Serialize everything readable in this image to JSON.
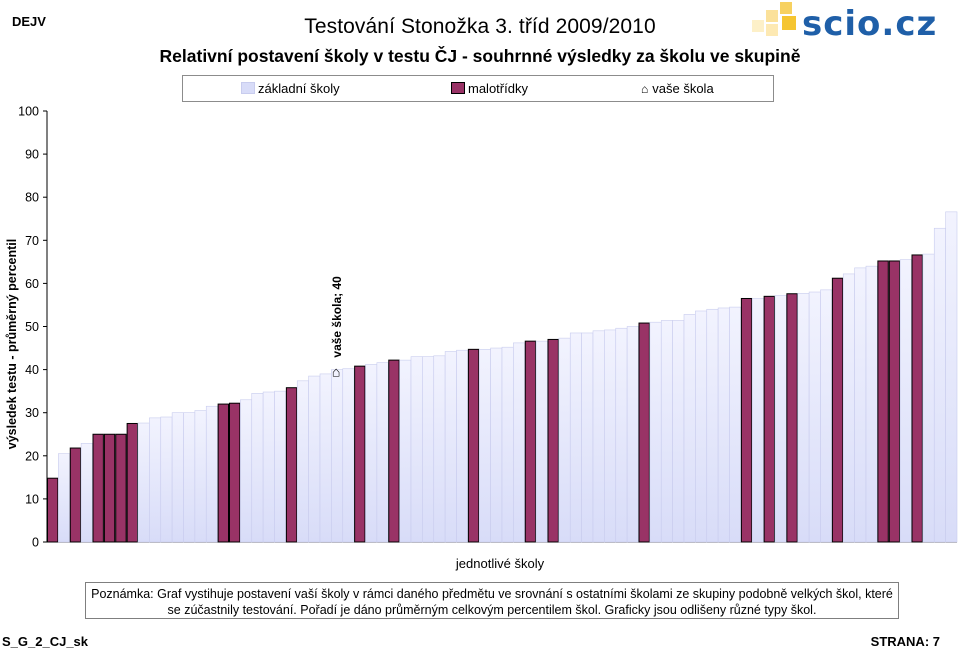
{
  "header": {
    "code": "DEJV",
    "title": "Testování Stonožka 3. tříd 2009/2010",
    "subtitle": "Relativní postavení školy v testu ČJ - souhrnné výsledky za školu ve skupině",
    "logo_text": "scio.cz"
  },
  "legend": {
    "basic": "základní školy",
    "small": "malotřídky",
    "yours": "vaše škola"
  },
  "colors": {
    "basic_bar": "#d8dcf8",
    "small_bar": "#993366",
    "logo_blue": "#1f5fa8",
    "logo_yellow": "#f5c531"
  },
  "chart_data": {
    "type": "bar",
    "title": "Relativní postavení školy v testu ČJ - souhrnné výsledky za školu ve skupině",
    "xlabel": "jednotlivé školy",
    "ylabel": "výsledek testu - průměrný percentil",
    "ylim": [
      0,
      100
    ],
    "yticks": [
      0,
      10,
      20,
      30,
      40,
      50,
      60,
      70,
      80,
      90,
      100
    ],
    "grid": false,
    "legend_position": "top",
    "series": [
      {
        "name": "základní školy",
        "type": "basic"
      },
      {
        "name": "malotřídky",
        "type": "small"
      },
      {
        "name": "vaše škola",
        "type": "yours"
      }
    ],
    "values": [
      14.8,
      20.5,
      21.8,
      22.9,
      25.0,
      25.0,
      25.0,
      27.5,
      27.6,
      28.8,
      29.0,
      30.0,
      30.0,
      30.5,
      31.5,
      32.0,
      32.2,
      33.0,
      34.5,
      34.8,
      35.0,
      35.8,
      37.4,
      38.5,
      39.0,
      40.0,
      40.2,
      40.8,
      41.2,
      41.6,
      42.2,
      42.2,
      43.0,
      43.0,
      43.2,
      44.2,
      44.5,
      44.7,
      44.7,
      45.0,
      45.2,
      46.2,
      46.6,
      46.6,
      47.0,
      47.3,
      48.5,
      48.5,
      49.0,
      49.2,
      49.6,
      50.0,
      50.8,
      51.0,
      51.4,
      51.4,
      52.8,
      53.6,
      54.0,
      54.3,
      54.5,
      56.5,
      56.5,
      57.0,
      57.2,
      57.6,
      57.7,
      58.0,
      58.5,
      61.2,
      62.2,
      63.6,
      64.0,
      65.2,
      65.2,
      65.5,
      66.6,
      66.8,
      72.8,
      76.6
    ],
    "types": [
      "small",
      "basic",
      "small",
      "basic",
      "small",
      "small",
      "small",
      "small",
      "basic",
      "basic",
      "basic",
      "basic",
      "basic",
      "basic",
      "basic",
      "small",
      "small",
      "basic",
      "basic",
      "basic",
      "basic",
      "small",
      "basic",
      "basic",
      "basic",
      "yours",
      "basic",
      "small",
      "basic",
      "basic",
      "small",
      "basic",
      "basic",
      "basic",
      "basic",
      "basic",
      "basic",
      "small",
      "basic",
      "basic",
      "basic",
      "basic",
      "small",
      "basic",
      "small",
      "basic",
      "basic",
      "basic",
      "basic",
      "basic",
      "basic",
      "basic",
      "small",
      "basic",
      "basic",
      "basic",
      "basic",
      "basic",
      "basic",
      "basic",
      "basic",
      "small",
      "basic",
      "small",
      "basic",
      "small",
      "basic",
      "basic",
      "basic",
      "small",
      "basic",
      "basic",
      "basic",
      "small",
      "small",
      "basic",
      "small",
      "basic",
      "basic",
      "basic"
    ],
    "annotation": "vaše škola; 40"
  },
  "footer": {
    "note": "Poznámka: Graf vystihuje postavení vaší školy v rámci daného předmětu ve srovnání s ostatními školami ze skupiny podobně velkých škol, které se zúčastnily testování. Pořadí je dáno průměrným celkovým percentilem škol. Graficky jsou odlišeny různé typy škol.",
    "code": "S_G_2_CJ_sk",
    "page": "STRANA: 7"
  }
}
